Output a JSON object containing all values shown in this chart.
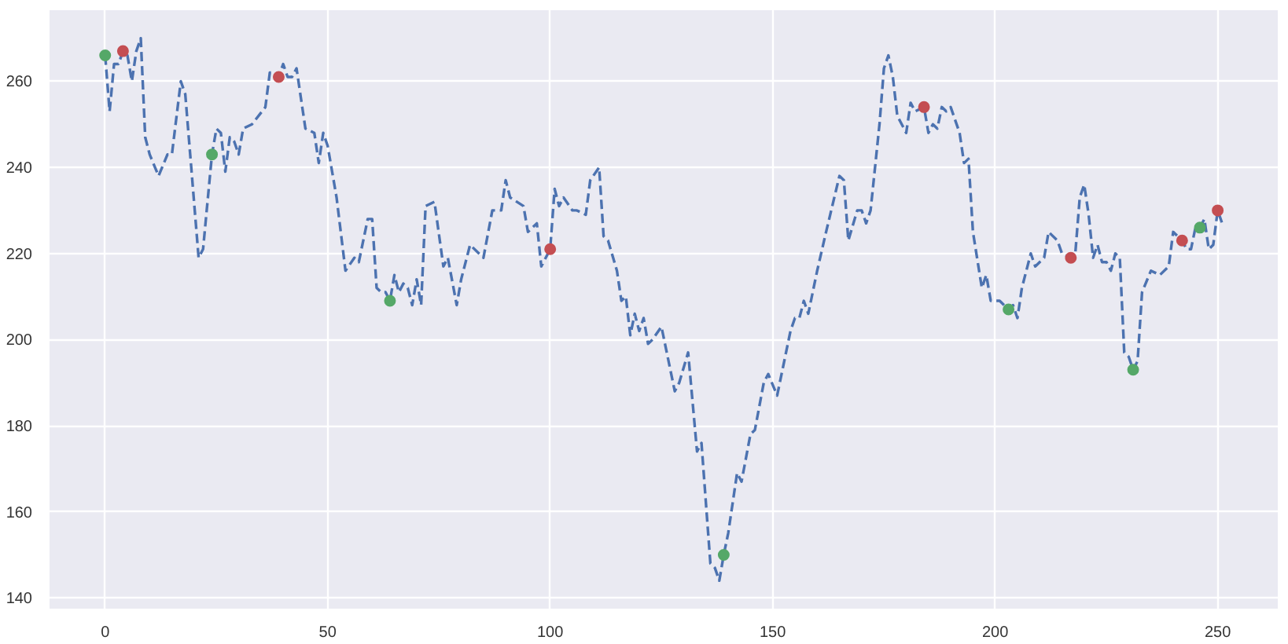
{
  "chart_data": {
    "type": "line",
    "xlim": [
      -12.5,
      263.5
    ],
    "ylim": [
      137.5,
      276.5
    ],
    "xticks": [
      0,
      50,
      100,
      150,
      200,
      250
    ],
    "yticks": [
      140,
      160,
      180,
      200,
      220,
      240,
      260
    ],
    "grid": true,
    "series": [
      {
        "color": "#4c72b0",
        "line_style": "dashed",
        "x": [
          0,
          1,
          2,
          3,
          4,
          5,
          6,
          7,
          8,
          9,
          10,
          12,
          14,
          15,
          17,
          18,
          21,
          22,
          24,
          25,
          26,
          27,
          28,
          29,
          30,
          31,
          33,
          36,
          37,
          38,
          39,
          40,
          41,
          42,
          43,
          45,
          47,
          48,
          49,
          50,
          52,
          54,
          56,
          57,
          59,
          60,
          61,
          62,
          63,
          64,
          65,
          66,
          67,
          68,
          69,
          70,
          71,
          72,
          74,
          76,
          77,
          79,
          80,
          82,
          84,
          85,
          87,
          89,
          90,
          91,
          94,
          95,
          97,
          98,
          99,
          100,
          101,
          102,
          103,
          105,
          106,
          108,
          109,
          111,
          112,
          113,
          115,
          116,
          117,
          118,
          119,
          120,
          121,
          122,
          123,
          125,
          128,
          129,
          131,
          133,
          134,
          136,
          137,
          138,
          139,
          140,
          142,
          143,
          145,
          146,
          148,
          149,
          151,
          154,
          155,
          156,
          157,
          158,
          160,
          162,
          165,
          166,
          167,
          169,
          170,
          171,
          172,
          174,
          175,
          176,
          177,
          178,
          180,
          181,
          182,
          184,
          185,
          186,
          187,
          188,
          189,
          190,
          192,
          193,
          194,
          195,
          197,
          198,
          199,
          201,
          203,
          204,
          205,
          206,
          208,
          209,
          211,
          212,
          214,
          215,
          217,
          218,
          219,
          220,
          221,
          222,
          223,
          224,
          225,
          226,
          227,
          228,
          229,
          230,
          231,
          232,
          233,
          235,
          237,
          239,
          240,
          241,
          242,
          243,
          244,
          245,
          246,
          247,
          248,
          249,
          250,
          251
        ],
        "values": [
          266,
          253,
          264,
          264,
          267,
          266,
          260,
          267,
          270,
          247,
          243,
          238,
          243,
          243,
          260,
          257,
          219,
          221,
          243,
          249,
          248,
          239,
          247,
          246,
          243,
          249,
          250,
          254,
          262,
          262,
          261,
          264,
          261,
          261,
          263,
          249,
          248,
          241,
          248,
          245,
          233,
          216,
          219,
          218,
          228,
          228,
          212,
          211,
          211,
          209,
          215,
          211,
          213,
          212,
          208,
          214,
          208,
          231,
          232,
          217,
          219,
          208,
          214,
          222,
          220,
          219,
          230,
          230,
          237,
          233,
          231,
          225,
          227,
          217,
          219,
          221,
          235,
          231,
          233,
          230,
          230,
          229,
          237,
          240,
          224,
          223,
          216,
          209,
          210,
          201,
          206,
          202,
          205,
          199,
          200,
          203,
          188,
          190,
          197,
          174,
          176,
          148,
          147,
          144,
          150,
          155,
          169,
          167,
          178,
          179,
          190,
          192,
          187,
          202,
          205,
          205,
          209,
          206,
          216,
          225,
          238,
          237,
          223,
          230,
          230,
          227,
          230,
          250,
          263,
          266,
          261,
          252,
          248,
          255,
          253,
          254,
          248,
          250,
          249,
          254,
          253,
          254,
          248,
          241,
          242,
          225,
          212,
          215,
          209,
          209,
          207,
          208,
          205,
          212,
          220,
          217,
          219,
          225,
          223,
          220,
          219,
          220,
          233,
          236,
          229,
          219,
          222,
          218,
          218,
          216,
          220,
          219,
          197,
          196,
          193,
          195,
          211,
          216,
          215,
          217,
          225,
          224,
          223,
          221,
          221,
          226,
          226,
          228,
          221,
          222,
          230,
          227
        ]
      },
      {
        "type": "scatter",
        "color": "#55a868",
        "marker": "circle",
        "x": [
          0,
          24,
          64,
          139,
          203,
          231,
          246
        ],
        "values": [
          266,
          243,
          209,
          150,
          207,
          193,
          226
        ]
      },
      {
        "type": "scatter",
        "color": "#c44e52",
        "marker": "circle",
        "x": [
          4,
          39,
          100,
          184,
          217,
          242,
          250
        ],
        "values": [
          267,
          261,
          221,
          254,
          219,
          223,
          230
        ]
      }
    ]
  }
}
